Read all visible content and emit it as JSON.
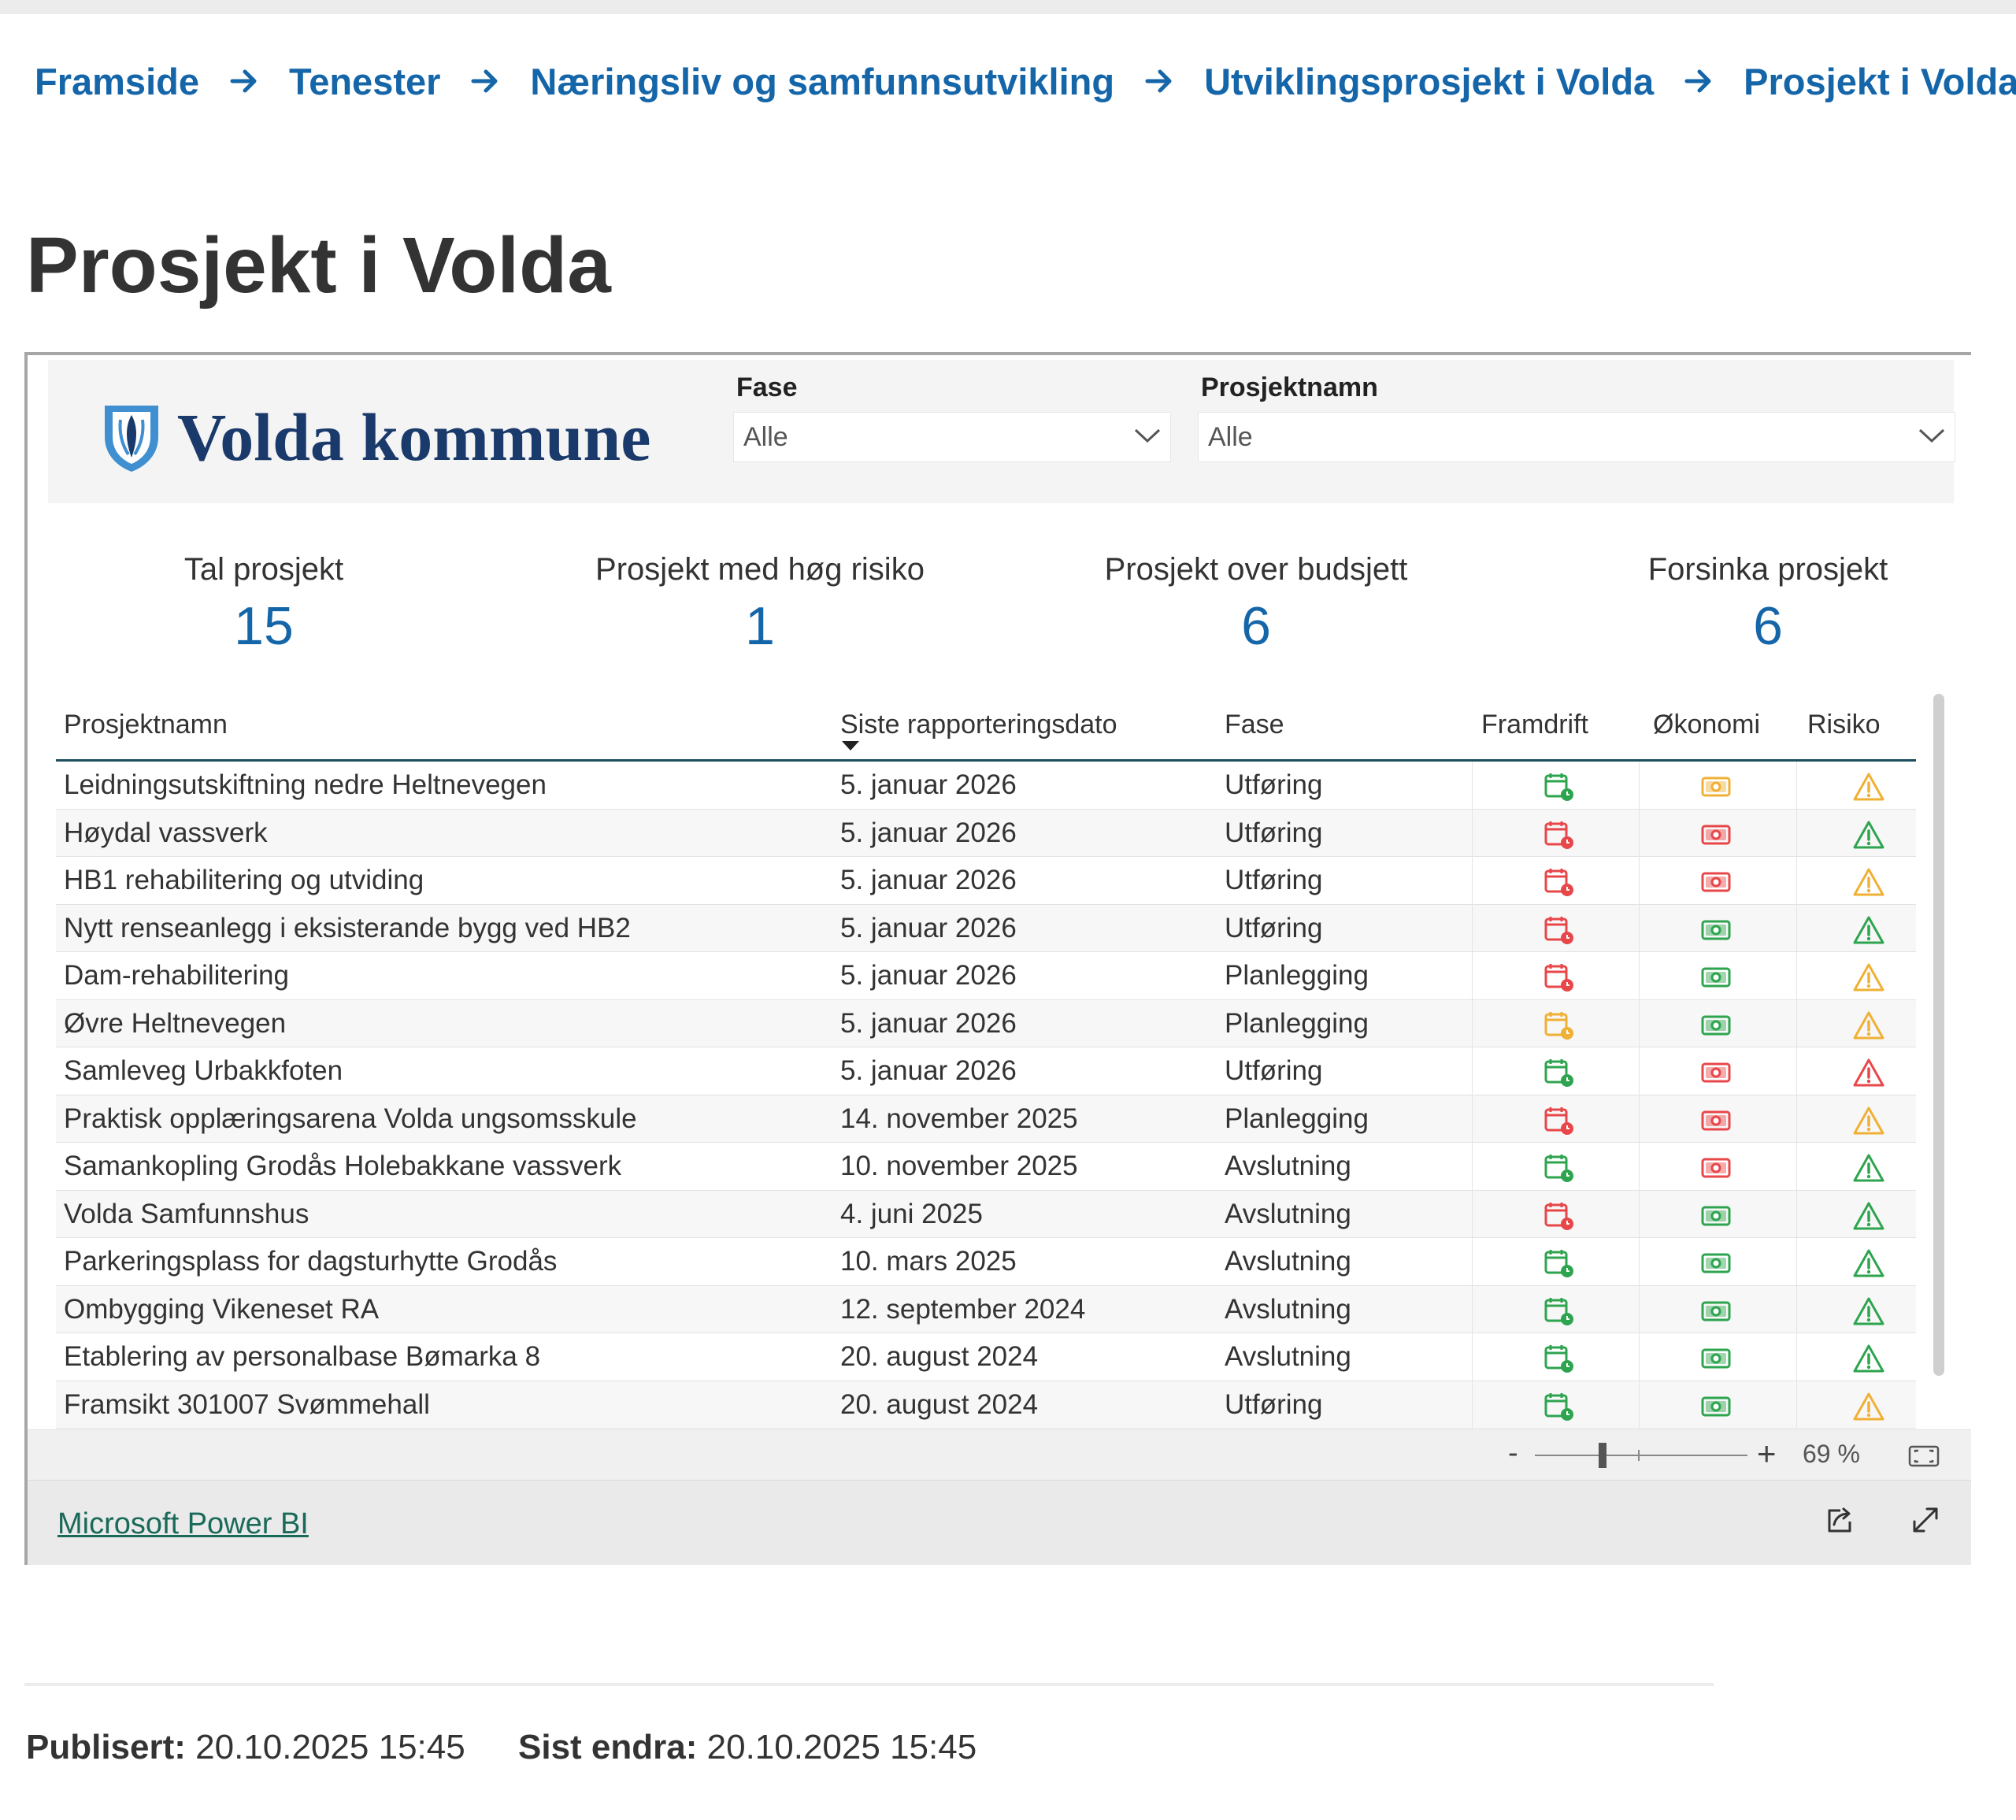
{
  "breadcrumb": [
    "Framside",
    "Tenester",
    "Næringsliv og samfunnsutvikling",
    "Utviklingsprosjekt i Volda",
    "Prosjekt i Volda"
  ],
  "page_title": "Prosjekt i Volda",
  "report": {
    "logo_text": "Volda kommune",
    "filters": {
      "fase_label": "Fase",
      "fase_value": "Alle",
      "prosjektnamn_label": "Prosjektnamn",
      "prosjektnamn_value": "Alle"
    },
    "kpis": [
      {
        "label": "Tal prosjekt",
        "value": "15"
      },
      {
        "label": "Prosjekt med høg risiko",
        "value": "1"
      },
      {
        "label": "Prosjekt over budsjett",
        "value": "6"
      },
      {
        "label": "Forsinka prosjekt",
        "value": "6"
      }
    ],
    "table": {
      "headers": [
        "Prosjektnamn",
        "Siste rapporteringsdato",
        "Fase",
        "Framdrift",
        "Økonomi",
        "Risiko"
      ],
      "rows": [
        {
          "name": "Leidningsutskiftning nedre Heltnevegen",
          "date": "5. januar 2026",
          "fase": "Utføring",
          "framdrift": "green",
          "okonomi": "yellow",
          "risiko": "yellow"
        },
        {
          "name": "Høydal vassverk",
          "date": "5. januar 2026",
          "fase": "Utføring",
          "framdrift": "red",
          "okonomi": "red",
          "risiko": "green"
        },
        {
          "name": "HB1 rehabilitering og utviding",
          "date": "5. januar 2026",
          "fase": "Utføring",
          "framdrift": "red",
          "okonomi": "red",
          "risiko": "yellow"
        },
        {
          "name": "Nytt renseanlegg i eksisterande bygg ved HB2",
          "date": "5. januar 2026",
          "fase": "Utføring",
          "framdrift": "red",
          "okonomi": "green",
          "risiko": "green"
        },
        {
          "name": "Dam-rehabilitering",
          "date": "5. januar 2026",
          "fase": "Planlegging",
          "framdrift": "red",
          "okonomi": "green",
          "risiko": "yellow"
        },
        {
          "name": "Øvre Heltnevegen",
          "date": "5. januar 2026",
          "fase": "Planlegging",
          "framdrift": "yellow",
          "okonomi": "green",
          "risiko": "yellow"
        },
        {
          "name": "Samleveg Urbakkfoten",
          "date": "5. januar 2026",
          "fase": "Utføring",
          "framdrift": "green",
          "okonomi": "red",
          "risiko": "red"
        },
        {
          "name": "Praktisk opplæringsarena Volda ungsomsskule",
          "date": "14. november 2025",
          "fase": "Planlegging",
          "framdrift": "red",
          "okonomi": "red",
          "risiko": "yellow"
        },
        {
          "name": "Samankopling Grodås Holebakkane vassverk",
          "date": "10. november 2025",
          "fase": "Avslutning",
          "framdrift": "green",
          "okonomi": "red",
          "risiko": "green"
        },
        {
          "name": "Volda Samfunnshus",
          "date": "4. juni 2025",
          "fase": "Avslutning",
          "framdrift": "red",
          "okonomi": "green",
          "risiko": "green"
        },
        {
          "name": "Parkeringsplass for dagsturhytte Grodås",
          "date": "10. mars 2025",
          "fase": "Avslutning",
          "framdrift": "green",
          "okonomi": "green",
          "risiko": "green"
        },
        {
          "name": "Ombygging Vikeneset RA",
          "date": "12. september 2024",
          "fase": "Avslutning",
          "framdrift": "green",
          "okonomi": "green",
          "risiko": "green"
        },
        {
          "name": "Etablering av personalbase Bømarka 8",
          "date": "20. august 2024",
          "fase": "Avslutning",
          "framdrift": "green",
          "okonomi": "green",
          "risiko": "green"
        },
        {
          "name": "Framsikt 301007 Svømmehall",
          "date": "20. august 2024",
          "fase": "Utføring",
          "framdrift": "green",
          "okonomi": "green",
          "risiko": "yellow"
        }
      ]
    },
    "zoom": {
      "minus": "-",
      "plus": "+",
      "value": "69 %"
    },
    "footer_link": "Microsoft Power BI"
  },
  "meta": {
    "published_label": "Publisert:",
    "published_value": "20.10.2025 15:45",
    "edited_label": "Sist endra:",
    "edited_value": "20.10.2025 15:45"
  },
  "colors": {
    "link": "#1565a9",
    "status_green": "#2ea44f",
    "status_yellow": "#f0b035",
    "status_red": "#e8474a",
    "logo_navy": "#1a3a6b"
  }
}
